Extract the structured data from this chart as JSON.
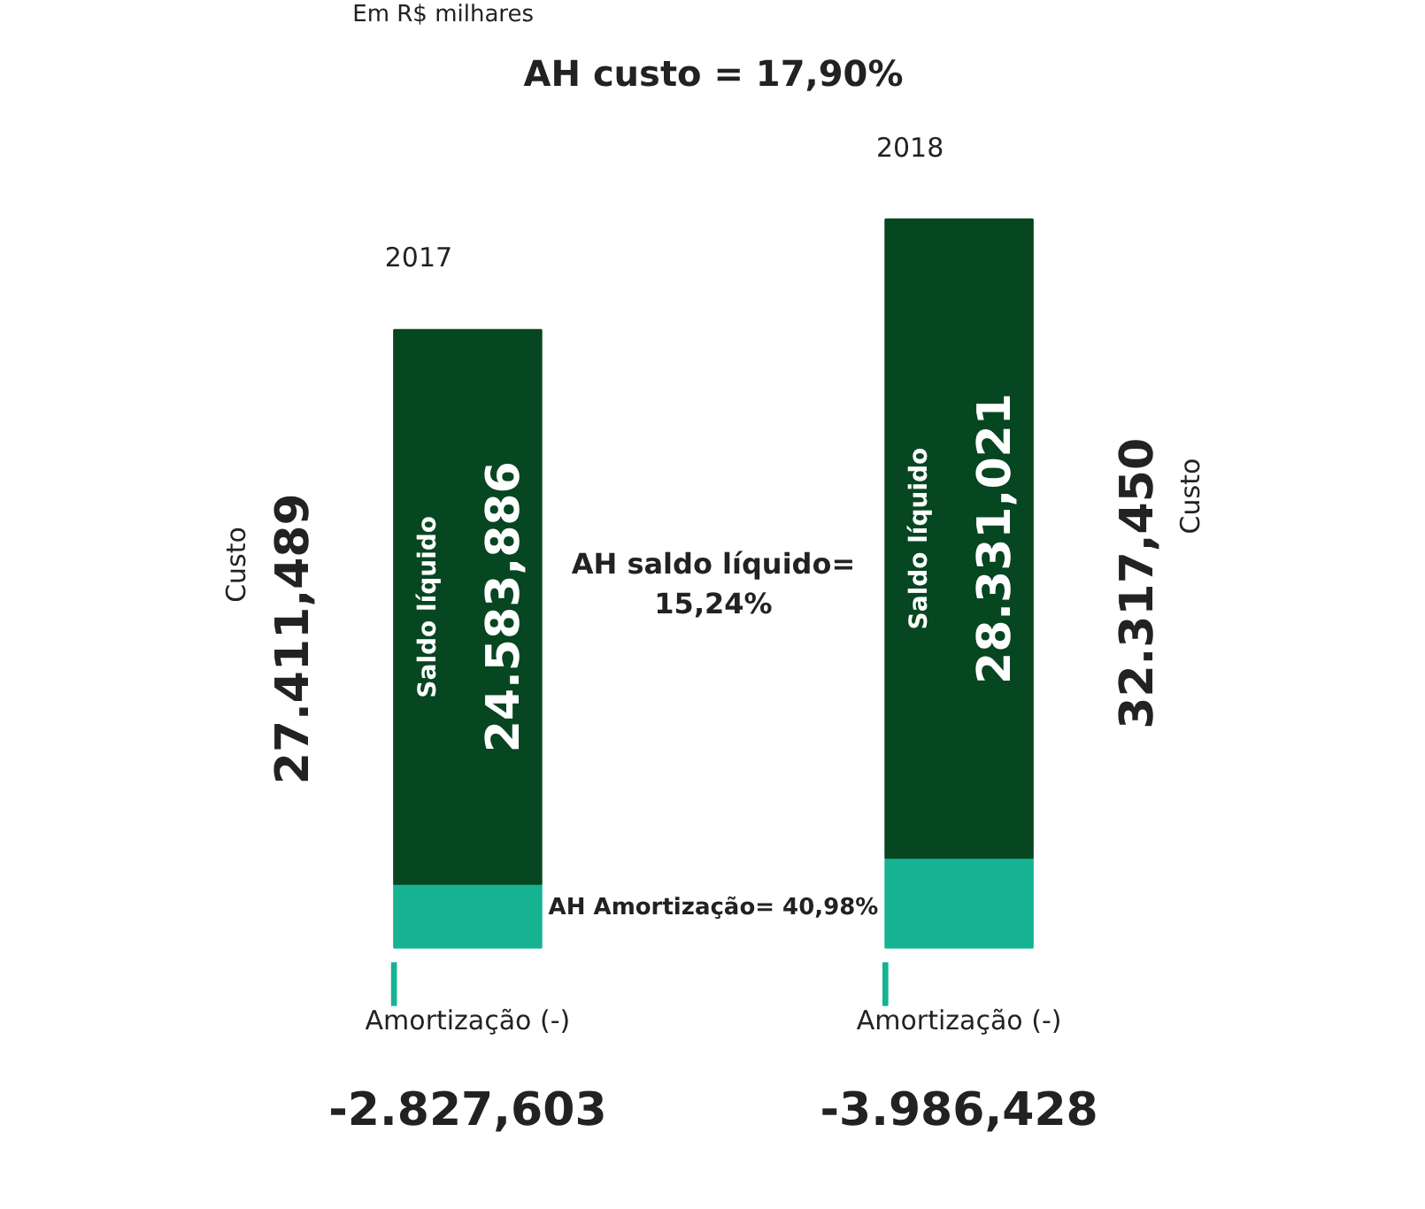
{
  "chart_data": {
    "type": "bar",
    "stacked": true,
    "categories": [
      "2017",
      "2018"
    ],
    "series": [
      {
        "name": "Amortização (-)",
        "color": "#16b393",
        "values": [
          2827.603,
          3986.428
        ]
      },
      {
        "name": "Saldo líquido",
        "color": "#064621",
        "values": [
          24583.886,
          28331.021
        ],
        "value_labels": [
          "24.583,886",
          "28.331,021"
        ]
      }
    ],
    "totals": [
      "27.411,489",
      "32.317,450"
    ],
    "annotations": [
      "Em R$ milhares",
      "AH custo = 17,90%",
      "AH saldo líquido=\n15,24%",
      "AH Amortização= 40,98%",
      "Custo",
      "Custo",
      "-2.827,603",
      "-3.986,428"
    ],
    "legend": "bottom",
    "grid": false
  }
}
